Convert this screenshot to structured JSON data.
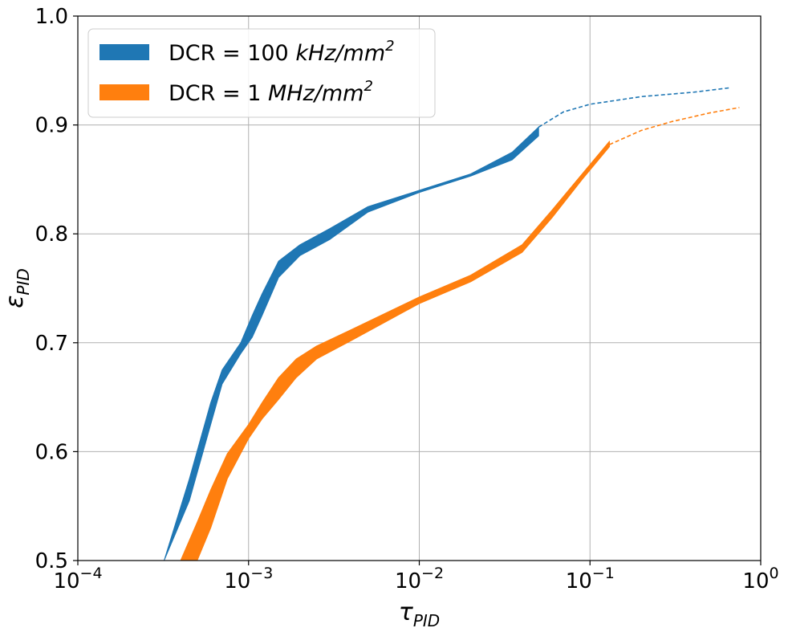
{
  "chart_data": {
    "type": "area",
    "xscale": "log",
    "xlim": [
      0.0001,
      1
    ],
    "ylim": [
      0.5,
      1.0
    ],
    "grid": true,
    "legend_position": "top-left",
    "xlabel_base": "τ",
    "xlabel_sub": "PID",
    "ylabel_base": "ε",
    "ylabel_sub": "PID",
    "x_ticks": [
      {
        "value": 0.0001,
        "base": "10",
        "exp": "−4"
      },
      {
        "value": 0.001,
        "base": "10",
        "exp": "−3"
      },
      {
        "value": 0.01,
        "base": "10",
        "exp": "−2"
      },
      {
        "value": 0.1,
        "base": "10",
        "exp": "−1"
      },
      {
        "value": 1,
        "base": "10",
        "exp": "0"
      }
    ],
    "y_ticks": [
      {
        "value": 0.5,
        "label": "0.5"
      },
      {
        "value": 0.6,
        "label": "0.6"
      },
      {
        "value": 0.7,
        "label": "0.7"
      },
      {
        "value": 0.8,
        "label": "0.8"
      },
      {
        "value": 0.9,
        "label": "0.9"
      },
      {
        "value": 1.0,
        "label": "1.0"
      }
    ],
    "series": [
      {
        "legend_prefix": "DCR = 100 ",
        "legend_unit": "kHz/mm",
        "legend_sup": "2",
        "color": "#1f77b4",
        "band": {
          "x": [
            0.00032,
            0.00045,
            0.0006,
            0.0007,
            0.0009,
            0.00105,
            0.0012,
            0.0015,
            0.002,
            0.003,
            0.005,
            0.01,
            0.02,
            0.035,
            0.05
          ],
          "upper": [
            0.5,
            0.575,
            0.645,
            0.675,
            0.7,
            0.725,
            0.745,
            0.775,
            0.79,
            0.805,
            0.825,
            0.84,
            0.855,
            0.875,
            0.898
          ],
          "lower": [
            0.5,
            0.555,
            0.625,
            0.662,
            0.69,
            0.705,
            0.725,
            0.76,
            0.78,
            0.795,
            0.82,
            0.838,
            0.853,
            0.868,
            0.89
          ]
        },
        "dashed": {
          "x": [
            0.05,
            0.07,
            0.1,
            0.2,
            0.4,
            0.65
          ],
          "y": [
            0.898,
            0.912,
            0.919,
            0.926,
            0.93,
            0.934
          ]
        }
      },
      {
        "legend_prefix": "DCR = 1 ",
        "legend_unit": "MHz/mm",
        "legend_sup": "2",
        "color": "#ff7f0e",
        "band": {
          "x": [
            0.0004,
            0.0005,
            0.0006,
            0.00075,
            0.001,
            0.0012,
            0.0015,
            0.0019,
            0.0025,
            0.004,
            0.01,
            0.02,
            0.04,
            0.06,
            0.09,
            0.13
          ],
          "upper": [
            0.5,
            0.535,
            0.565,
            0.598,
            0.625,
            0.645,
            0.668,
            0.685,
            0.697,
            0.712,
            0.742,
            0.762,
            0.79,
            0.822,
            0.855,
            0.885
          ],
          "lower": [
            0.5,
            0.5,
            0.53,
            0.575,
            0.612,
            0.63,
            0.648,
            0.668,
            0.685,
            0.702,
            0.736,
            0.756,
            0.783,
            0.815,
            0.85,
            0.88
          ]
        },
        "dashed": {
          "x": [
            0.13,
            0.2,
            0.3,
            0.5,
            0.75
          ],
          "y": [
            0.882,
            0.895,
            0.903,
            0.911,
            0.916
          ]
        }
      }
    ]
  }
}
